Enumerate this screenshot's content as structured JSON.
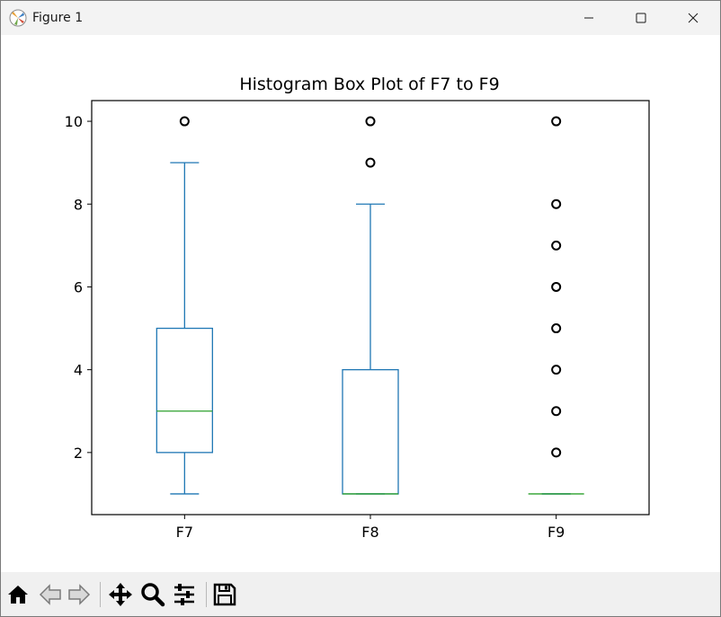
{
  "window": {
    "title": "Figure 1"
  },
  "titlebar_buttons": {
    "minimize_icon": "minimize-icon",
    "maximize_icon": "maximize-icon",
    "close_icon": "close-icon"
  },
  "toolbar": {
    "buttons": [
      {
        "icon": "home-icon"
      },
      {
        "icon": "back-arrow-icon"
      },
      {
        "icon": "forward-arrow-icon"
      },
      {
        "icon": "pan-move-icon"
      },
      {
        "icon": "zoom-magnifier-icon"
      },
      {
        "icon": "configure-subplots-icon"
      },
      {
        "icon": "save-floppy-icon"
      }
    ]
  },
  "colors": {
    "box": "#1f77b4",
    "median": "#2ca02c",
    "flier": "#000000",
    "axes": "#000000"
  },
  "chart_data": {
    "type": "box",
    "title": "Histogram Box Plot of F7 to F9",
    "xlabel": "",
    "ylabel": "",
    "categories": [
      "F7",
      "F8",
      "F9"
    ],
    "ylim": [
      0.5,
      10.5
    ],
    "yticks": [
      2,
      4,
      6,
      8,
      10
    ],
    "ytick_labels": [
      "2",
      "4",
      "6",
      "8",
      "10"
    ],
    "grid": false,
    "boxes": [
      {
        "name": "F7",
        "whisker_low": 1,
        "q1": 2,
        "median": 3,
        "q3": 5,
        "whisker_high": 9,
        "fliers": [
          10
        ]
      },
      {
        "name": "F8",
        "whisker_low": 1,
        "q1": 1,
        "median": 1,
        "q3": 4,
        "whisker_high": 8,
        "fliers": [
          9,
          10
        ]
      },
      {
        "name": "F9",
        "whisker_low": 1,
        "q1": 1,
        "median": 1,
        "q3": 1,
        "whisker_high": 1,
        "fliers": [
          2,
          3,
          4,
          5,
          6,
          7,
          8,
          10
        ]
      }
    ]
  }
}
